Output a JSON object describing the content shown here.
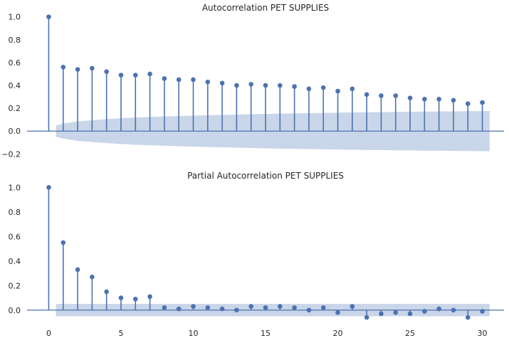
{
  "chart_data": [
    {
      "type": "stem",
      "title": "Autocorrelation PET SUPPLIES",
      "xlabel": "",
      "ylabel": "",
      "xlim": [
        -1.5,
        31.5
      ],
      "ylim": [
        -0.26,
        1.06
      ],
      "yticks": [
        -0.2,
        0.0,
        0.2,
        0.4,
        0.6,
        0.8,
        1.0
      ],
      "ytick_labels": [
        "−0.2",
        "0.0",
        "0.2",
        "0.4",
        "0.6",
        "0.8",
        "1.0"
      ],
      "x": [
        0,
        1,
        2,
        3,
        4,
        5,
        6,
        7,
        8,
        9,
        10,
        11,
        12,
        13,
        14,
        15,
        16,
        17,
        18,
        19,
        20,
        21,
        22,
        23,
        24,
        25,
        26,
        27,
        28,
        29,
        30
      ],
      "values": [
        1.0,
        0.56,
        0.54,
        0.55,
        0.52,
        0.49,
        0.49,
        0.5,
        0.46,
        0.45,
        0.45,
        0.43,
        0.42,
        0.4,
        0.41,
        0.4,
        0.4,
        0.39,
        0.37,
        0.38,
        0.35,
        0.37,
        0.32,
        0.31,
        0.31,
        0.29,
        0.28,
        0.28,
        0.27,
        0.24,
        0.25
      ],
      "confidence_band": {
        "x": [
          0.5,
          1,
          2,
          3,
          4,
          5,
          6,
          7,
          8,
          9,
          10,
          11,
          12,
          13,
          14,
          15,
          16,
          17,
          18,
          19,
          20,
          21,
          22,
          23,
          24,
          25,
          26,
          27,
          28,
          29,
          30,
          30.5
        ],
        "upper": [
          0.05,
          0.065,
          0.085,
          0.095,
          0.105,
          0.113,
          0.119,
          0.124,
          0.128,
          0.132,
          0.136,
          0.139,
          0.142,
          0.145,
          0.148,
          0.151,
          0.153,
          0.155,
          0.157,
          0.159,
          0.161,
          0.163,
          0.165,
          0.166,
          0.168,
          0.169,
          0.171,
          0.172,
          0.173,
          0.174,
          0.175,
          0.176
        ]
      },
      "colors": {
        "stem": "#4c72b0",
        "band": "#c9d5e8",
        "axis": "#4c72b0"
      }
    },
    {
      "type": "stem",
      "title": "Partial Autocorrelation PET SUPPLIES",
      "xlabel": "",
      "ylabel": "",
      "xlim": [
        -1.5,
        31.5
      ],
      "ylim": [
        -0.1,
        1.06
      ],
      "yticks": [
        0.0,
        0.2,
        0.4,
        0.6,
        0.8,
        1.0
      ],
      "ytick_labels": [
        "0.0",
        "0.2",
        "0.4",
        "0.6",
        "0.8",
        "1.0"
      ],
      "xticks": [
        0,
        5,
        10,
        15,
        20,
        25,
        30
      ],
      "xtick_labels": [
        "0",
        "5",
        "10",
        "15",
        "20",
        "25",
        "30"
      ],
      "x": [
        0,
        1,
        2,
        3,
        4,
        5,
        6,
        7,
        8,
        9,
        10,
        11,
        12,
        13,
        14,
        15,
        16,
        17,
        18,
        19,
        20,
        21,
        22,
        23,
        24,
        25,
        26,
        27,
        28,
        29,
        30
      ],
      "values": [
        1.0,
        0.55,
        0.33,
        0.27,
        0.15,
        0.1,
        0.09,
        0.11,
        0.02,
        0.01,
        0.03,
        0.02,
        0.01,
        0.0,
        0.03,
        0.02,
        0.03,
        0.02,
        0.0,
        0.02,
        -0.02,
        0.03,
        -0.06,
        -0.03,
        -0.02,
        -0.03,
        -0.01,
        0.01,
        0.0,
        -0.06,
        -0.01
      ],
      "confidence_band": {
        "x": [
          0.5,
          30.5
        ],
        "upper": [
          0.05,
          0.05
        ]
      },
      "colors": {
        "stem": "#4c72b0",
        "band": "#c9d5e8",
        "axis": "#4c72b0"
      }
    }
  ]
}
